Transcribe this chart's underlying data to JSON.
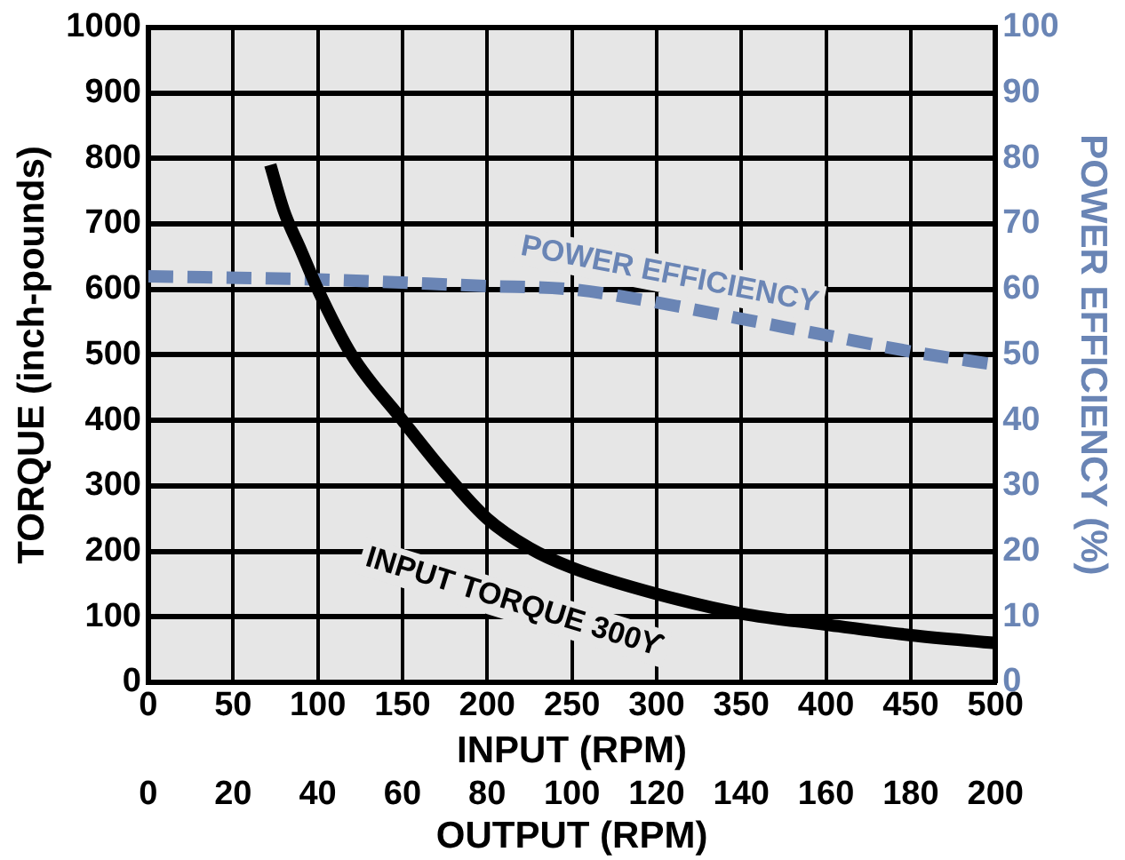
{
  "chart_data": {
    "type": "line",
    "xlabel": "INPUT (RPM)",
    "ylabel": "TORQUE (inch-pounds)",
    "y2label": "POWER EFFICIENCY (%)",
    "x2label": "OUTPUT (RPM)",
    "xlim": [
      0,
      500
    ],
    "xticks": [
      0,
      50,
      100,
      150,
      200,
      250,
      300,
      350,
      400,
      450,
      500
    ],
    "x2lim": [
      0,
      200
    ],
    "x2ticks": [
      0,
      20,
      40,
      60,
      80,
      100,
      120,
      140,
      160,
      180,
      200
    ],
    "ylim": [
      0,
      1000
    ],
    "yticks": [
      0,
      100,
      200,
      300,
      400,
      500,
      600,
      700,
      800,
      900,
      1000
    ],
    "y2lim": [
      0,
      100
    ],
    "y2ticks": [
      0,
      10,
      20,
      30,
      40,
      50,
      60,
      70,
      80,
      90,
      100
    ],
    "grid": true,
    "legend": false,
    "marker": "none",
    "series": [
      {
        "name": "INPUT TORQUE 300ϒ",
        "color": "#000000",
        "line_style": "solid",
        "x": [
          72,
          80,
          90,
          100,
          120,
          150,
          175,
          200,
          225,
          250,
          300,
          350,
          400,
          450,
          500
        ],
        "values": [
          790,
          720,
          660,
          600,
          500,
          400,
          320,
          250,
          205,
          175,
          135,
          105,
          88,
          72,
          60
        ]
      },
      {
        "name": "POWER EFFICIENCY",
        "color": "#6a85b5",
        "line_style": "dashed",
        "axis": "y2",
        "x": [
          0,
          100,
          200,
          250,
          300,
          350,
          400,
          450,
          500
        ],
        "values": [
          62,
          61.5,
          60.5,
          60,
          58,
          55.5,
          53,
          50.5,
          48.5
        ]
      }
    ]
  }
}
